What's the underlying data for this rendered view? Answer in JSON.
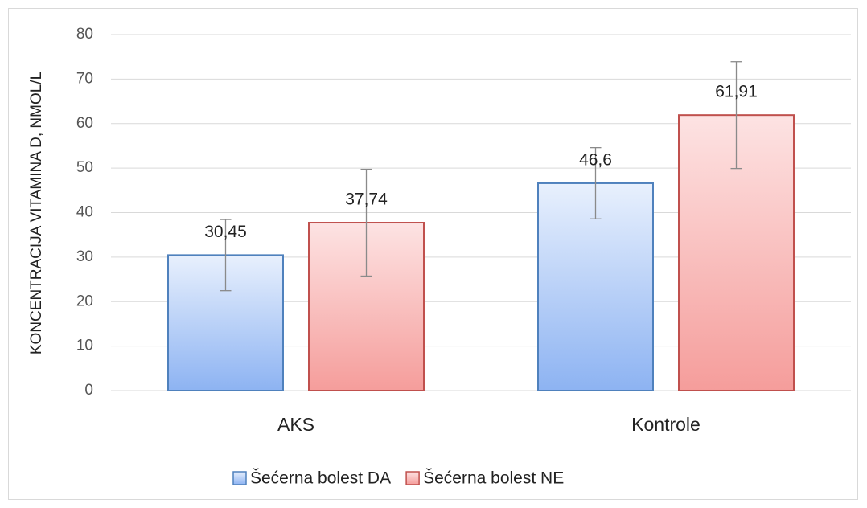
{
  "chart_data": {
    "type": "bar",
    "y_label": "KONCENTRACIJA VITAMINA D, NMOL/L",
    "categories": [
      "AKS",
      "Kontrole"
    ],
    "series": [
      {
        "name": "Šećerna bolest DA",
        "color": "#4f81bd",
        "values": [
          30.45,
          46.6
        ],
        "value_labels": [
          "30,45",
          "46,6"
        ],
        "errors": [
          8,
          8
        ]
      },
      {
        "name": "Šećerna bolest NE",
        "color": "#c0504d",
        "values": [
          37.74,
          61.91
        ],
        "value_labels": [
          "37,74",
          "61,91"
        ],
        "errors": [
          12,
          12
        ]
      }
    ],
    "ylim": [
      0,
      80
    ],
    "yticks": [
      0,
      10,
      20,
      30,
      40,
      50,
      60,
      70,
      80
    ],
    "grid": true,
    "legend": "bottom"
  }
}
